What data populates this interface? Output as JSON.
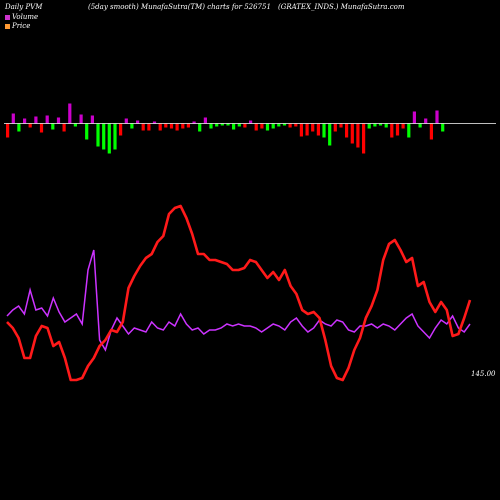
{
  "header": {
    "left": "Daily PVM",
    "middle": "(5day smooth) MunafaSutra(TM) charts for 526751",
    "right": "(GRATEX_INDS.) MunafaSutra.com"
  },
  "legend": [
    {
      "label": "Volume",
      "color": "#cc33cc"
    },
    {
      "label": "Price",
      "color": "#ff9933"
    }
  ],
  "colors": {
    "up": "#cc00cc",
    "down_red": "#ff0000",
    "down_green": "#00ff00",
    "baseline": "#ffffff",
    "price_line": "#ff1a1a",
    "volume_line": "#cc33ff"
  },
  "chart_data": {
    "type": "bar",
    "bars": [
      {
        "value": -14,
        "color": "red"
      },
      {
        "value": 10,
        "color": "magenta"
      },
      {
        "value": -8,
        "color": "green"
      },
      {
        "value": 5,
        "color": "magenta"
      },
      {
        "value": -4,
        "color": "red"
      },
      {
        "value": 7,
        "color": "magenta"
      },
      {
        "value": -9,
        "color": "red"
      },
      {
        "value": 8,
        "color": "magenta"
      },
      {
        "value": -6,
        "color": "green"
      },
      {
        "value": 6,
        "color": "magenta"
      },
      {
        "value": -8,
        "color": "red"
      },
      {
        "value": 20,
        "color": "magenta"
      },
      {
        "value": -3,
        "color": "green"
      },
      {
        "value": 9,
        "color": "magenta"
      },
      {
        "value": -16,
        "color": "green"
      },
      {
        "value": 8,
        "color": "magenta"
      },
      {
        "value": -23,
        "color": "green"
      },
      {
        "value": -26,
        "color": "green"
      },
      {
        "value": -30,
        "color": "green"
      },
      {
        "value": -26,
        "color": "green"
      },
      {
        "value": -12,
        "color": "red"
      },
      {
        "value": 5,
        "color": "magenta"
      },
      {
        "value": -5,
        "color": "green"
      },
      {
        "value": 3,
        "color": "magenta"
      },
      {
        "value": -7,
        "color": "red"
      },
      {
        "value": -7,
        "color": "red"
      },
      {
        "value": 2,
        "color": "magenta"
      },
      {
        "value": -7,
        "color": "red"
      },
      {
        "value": -4,
        "color": "red"
      },
      {
        "value": -5,
        "color": "red"
      },
      {
        "value": -7,
        "color": "red"
      },
      {
        "value": -5,
        "color": "red"
      },
      {
        "value": -4,
        "color": "red"
      },
      {
        "value": 2,
        "color": "magenta"
      },
      {
        "value": -8,
        "color": "green"
      },
      {
        "value": 6,
        "color": "magenta"
      },
      {
        "value": -5,
        "color": "green"
      },
      {
        "value": -3,
        "color": "green"
      },
      {
        "value": -2,
        "color": "green"
      },
      {
        "value": -2,
        "color": "green"
      },
      {
        "value": -6,
        "color": "green"
      },
      {
        "value": -3,
        "color": "green"
      },
      {
        "value": -4,
        "color": "red"
      },
      {
        "value": 3,
        "color": "magenta"
      },
      {
        "value": -7,
        "color": "red"
      },
      {
        "value": -5,
        "color": "red"
      },
      {
        "value": -7,
        "color": "green"
      },
      {
        "value": -5,
        "color": "green"
      },
      {
        "value": -3,
        "color": "green"
      },
      {
        "value": -2,
        "color": "green"
      },
      {
        "value": -4,
        "color": "red"
      },
      {
        "value": -3,
        "color": "red"
      },
      {
        "value": -13,
        "color": "red"
      },
      {
        "value": -12,
        "color": "red"
      },
      {
        "value": -8,
        "color": "red"
      },
      {
        "value": -12,
        "color": "red"
      },
      {
        "value": -14,
        "color": "green"
      },
      {
        "value": -22,
        "color": "green"
      },
      {
        "value": -8,
        "color": "red"
      },
      {
        "value": -4,
        "color": "red"
      },
      {
        "value": -14,
        "color": "red"
      },
      {
        "value": -20,
        "color": "red"
      },
      {
        "value": -24,
        "color": "red"
      },
      {
        "value": -30,
        "color": "red"
      },
      {
        "value": -5,
        "color": "green"
      },
      {
        "value": -3,
        "color": "green"
      },
      {
        "value": -2,
        "color": "green"
      },
      {
        "value": -4,
        "color": "green"
      },
      {
        "value": -14,
        "color": "red"
      },
      {
        "value": -12,
        "color": "red"
      },
      {
        "value": -5,
        "color": "red"
      },
      {
        "value": -14,
        "color": "green"
      },
      {
        "value": 12,
        "color": "magenta"
      },
      {
        "value": -4,
        "color": "green"
      },
      {
        "value": 5,
        "color": "magenta"
      },
      {
        "value": -16,
        "color": "red"
      },
      {
        "value": 13,
        "color": "magenta"
      },
      {
        "value": -8,
        "color": "green"
      }
    ],
    "price_series": [
      88,
      82,
      72,
      52,
      52,
      74,
      84,
      82,
      64,
      68,
      52,
      30,
      30,
      32,
      44,
      52,
      64,
      70,
      80,
      78,
      88,
      122,
      134,
      144,
      152,
      156,
      168,
      174,
      196,
      202,
      204,
      192,
      176,
      156,
      156,
      150,
      150,
      148,
      146,
      140,
      140,
      142,
      150,
      148,
      140,
      132,
      138,
      130,
      140,
      124,
      116,
      100,
      96,
      98,
      92,
      70,
      44,
      32,
      30,
      42,
      60,
      72,
      92,
      104,
      120,
      150,
      166,
      170,
      160,
      148,
      152,
      124,
      128,
      108,
      98,
      108,
      100,
      74,
      76,
      92,
      110
    ],
    "volume_series": [
      94,
      100,
      104,
      96,
      120,
      100,
      102,
      94,
      112,
      98,
      88,
      92,
      96,
      86,
      140,
      160,
      70,
      60,
      80,
      92,
      84,
      76,
      82,
      80,
      78,
      88,
      82,
      80,
      88,
      84,
      96,
      86,
      80,
      82,
      76,
      80,
      80,
      82,
      86,
      84,
      86,
      84,
      84,
      82,
      78,
      82,
      86,
      84,
      80,
      88,
      92,
      84,
      78,
      82,
      90,
      86,
      84,
      90,
      88,
      80,
      78,
      84,
      84,
      86,
      82,
      86,
      84,
      80,
      86,
      92,
      96,
      84,
      78,
      72,
      82,
      90,
      86,
      94,
      82,
      78,
      86
    ],
    "price_label": "145.00"
  }
}
